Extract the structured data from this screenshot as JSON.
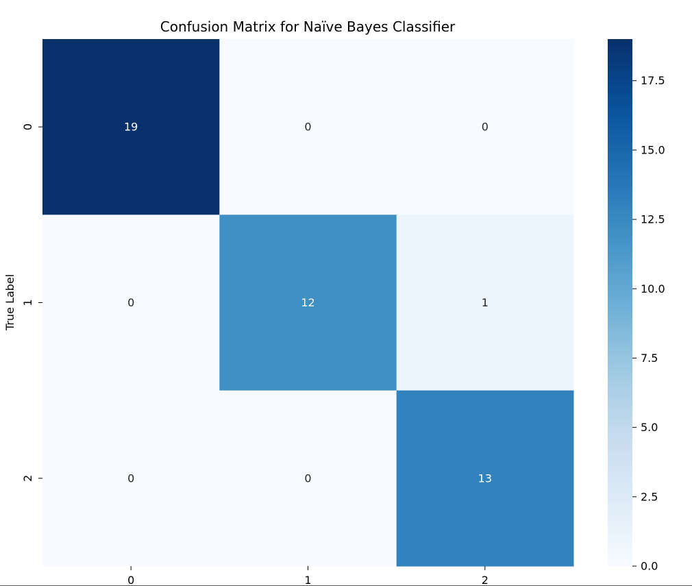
{
  "chart_data": {
    "type": "heatmap",
    "title": "Confusion Matrix for Naïve Bayes Classifier",
    "ylabel": "True Label",
    "xlabel": "",
    "x_categories": [
      "0",
      "1",
      "2"
    ],
    "y_categories": [
      "0",
      "1",
      "2"
    ],
    "values": [
      [
        19,
        0,
        0
      ],
      [
        0,
        12,
        1
      ],
      [
        0,
        0,
        13
      ]
    ],
    "colormap": "Blues",
    "colorbar": {
      "range": [
        0,
        19
      ],
      "ticks": [
        0.0,
        2.5,
        5.0,
        7.5,
        10.0,
        12.5,
        15.0,
        17.5
      ],
      "tick_labels": [
        "0.0",
        "2.5",
        "5.0",
        "7.5",
        "10.0",
        "12.5",
        "15.0",
        "17.5"
      ]
    },
    "grid": false,
    "annotations": true
  }
}
